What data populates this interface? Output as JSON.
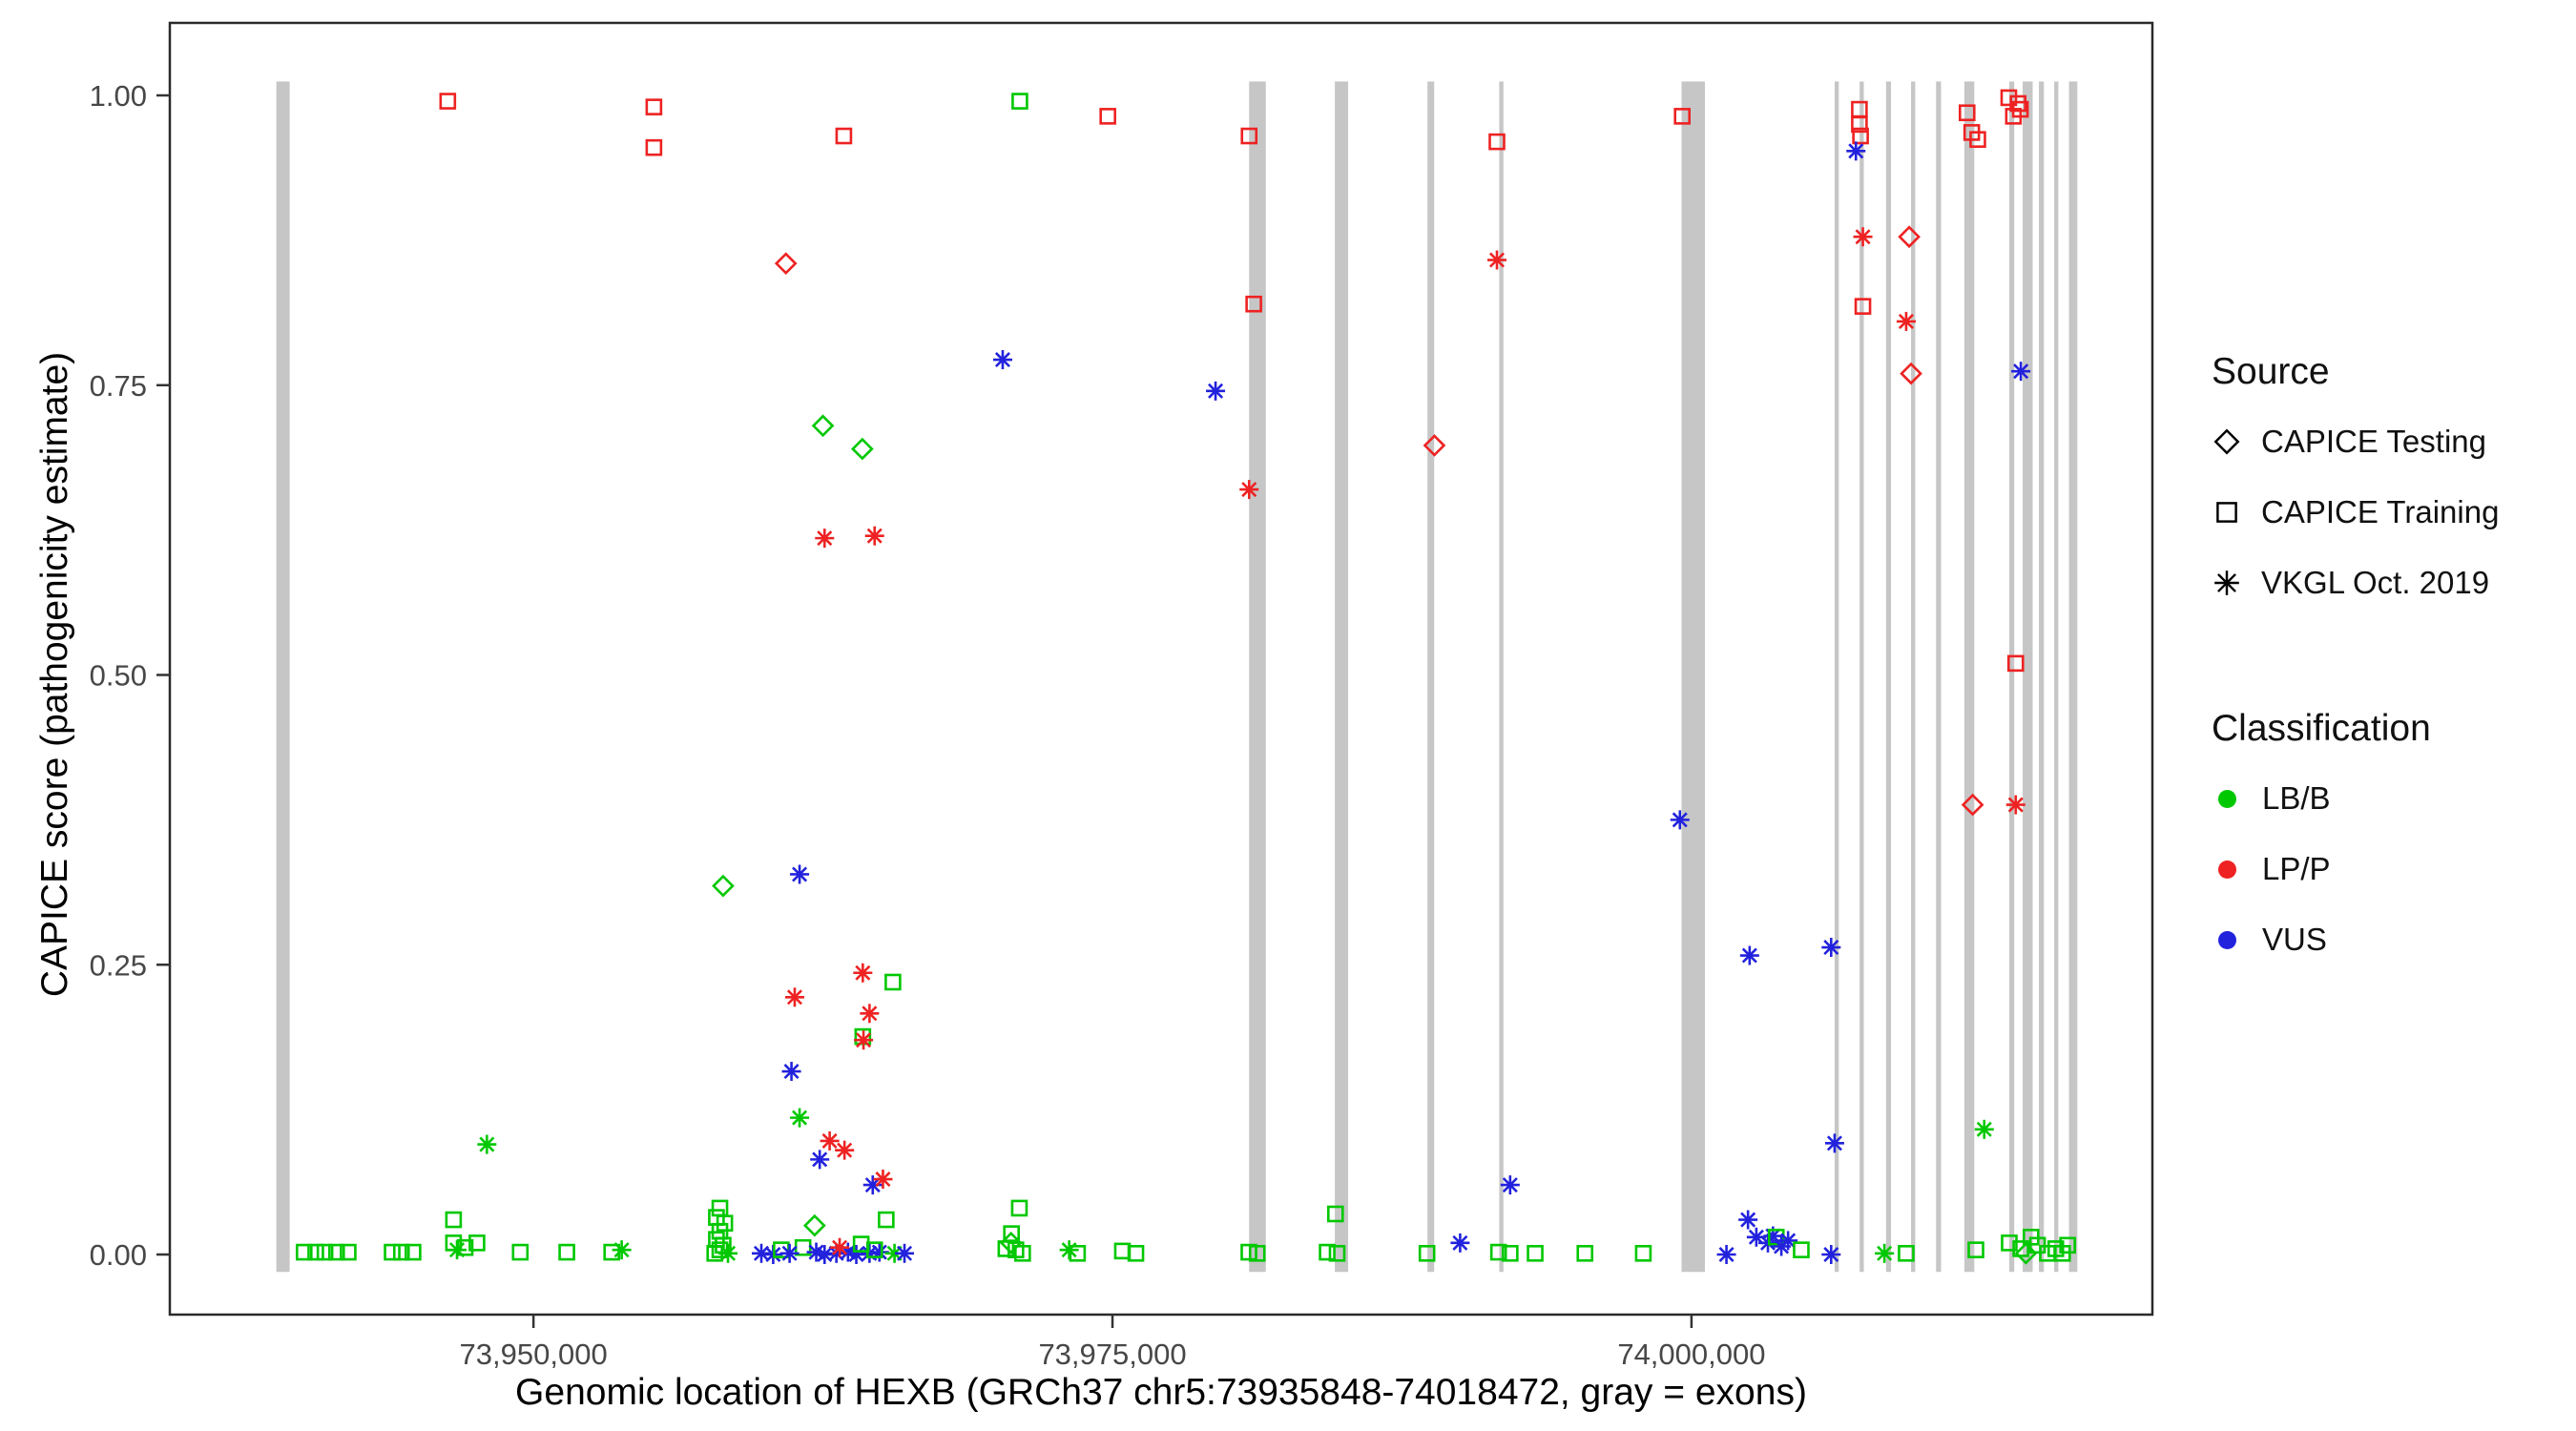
{
  "colors": {
    "LB/B": "#00C800",
    "LP/P": "#EE2222",
    "VUS": "#2222DD",
    "exon": "#C6C6C6",
    "axis_text": "#474747",
    "panel_border": "#2A2A2A"
  },
  "legend": {
    "source": {
      "title": "Source",
      "items": [
        {
          "shape": "diamond",
          "label": "CAPICE Testing"
        },
        {
          "shape": "square",
          "label": "CAPICE Training"
        },
        {
          "shape": "asterisk",
          "label": "VKGL Oct. 2019"
        }
      ]
    },
    "classification": {
      "title": "Classification",
      "items": [
        {
          "label": "LB/B",
          "color": "#00C800"
        },
        {
          "label": "LP/P",
          "color": "#EE2222"
        },
        {
          "label": "VUS",
          "color": "#2222DD"
        }
      ]
    }
  },
  "chart_data": {
    "type": "scatter",
    "title": "",
    "xlabel": "Genomic location of HEXB (GRCh37 chr5:73935848-74018472, gray = exons)",
    "ylabel": "CAPICE score (pathogenicity estimate)",
    "gene_region": "GRCh37 chr5:73935848-74018472",
    "xlim": [
      73934300,
      74019900
    ],
    "ylim": [
      0,
      1
    ],
    "grid": false,
    "legend_position": "right",
    "x_ticks": [
      {
        "value": 73950000,
        "label": "73,950,000"
      },
      {
        "value": 73975000,
        "label": "73,975,000"
      },
      {
        "value": 74000000,
        "label": "74,000,000"
      }
    ],
    "y_ticks": [
      {
        "value": 0.0,
        "label": "0.00"
      },
      {
        "value": 0.25,
        "label": "0.25"
      },
      {
        "value": 0.5,
        "label": "0.50"
      },
      {
        "value": 0.75,
        "label": "0.75"
      },
      {
        "value": 1.0,
        "label": "1.00"
      }
    ],
    "exon_format": [
      "start_position",
      "width_bp"
    ],
    "exons": [
      [
        73938900,
        575
      ],
      [
        73980900,
        720
      ],
      [
        73984600,
        575
      ],
      [
        73988600,
        290
      ],
      [
        73991700,
        180
      ],
      [
        73999570,
        1010
      ],
      [
        74006180,
        180
      ],
      [
        74007260,
        180
      ],
      [
        74008400,
        215
      ],
      [
        74009480,
        180
      ],
      [
        74010560,
        215
      ],
      [
        74011780,
        430
      ],
      [
        74013720,
        215
      ],
      [
        74014300,
        430
      ],
      [
        74015000,
        215
      ],
      [
        74015660,
        180
      ],
      [
        74016300,
        360
      ]
    ],
    "point_format": [
      "genomic_position",
      "capice_score",
      "source: t=CAPICE Testing (diamond), r=CAPICE Training (square), v=VKGL Oct. 2019 (asterisk)",
      "classification: B=LB/B (green), P=LP/P (red), V=VUS (blue)"
    ],
    "points": [
      [
        73946300,
        0.995,
        "r",
        "P"
      ],
      [
        73955200,
        0.99,
        "r",
        "P"
      ],
      [
        73955200,
        0.955,
        "r",
        "P"
      ],
      [
        73963400,
        0.965,
        "r",
        "P"
      ],
      [
        73971000,
        0.995,
        "r",
        "B"
      ],
      [
        73974800,
        0.982,
        "r",
        "P"
      ],
      [
        73980900,
        0.965,
        "r",
        "P"
      ],
      [
        73991600,
        0.96,
        "r",
        "P"
      ],
      [
        73999600,
        0.982,
        "r",
        "P"
      ],
      [
        74007250,
        0.988,
        "r",
        "P"
      ],
      [
        74007250,
        0.975,
        "r",
        "P"
      ],
      [
        74007300,
        0.965,
        "r",
        "P"
      ],
      [
        74007100,
        0.952,
        "v",
        "V"
      ],
      [
        74011900,
        0.985,
        "r",
        "P"
      ],
      [
        74012100,
        0.968,
        "r",
        "P"
      ],
      [
        74012360,
        0.962,
        "r",
        "P"
      ],
      [
        74013700,
        0.998,
        "r",
        "P"
      ],
      [
        74014100,
        0.993,
        "r",
        "P"
      ],
      [
        74014200,
        0.988,
        "r",
        "P"
      ],
      [
        74013900,
        0.982,
        "r",
        "P"
      ],
      [
        73960900,
        0.855,
        "t",
        "P"
      ],
      [
        74007400,
        0.878,
        "v",
        "P"
      ],
      [
        74009400,
        0.878,
        "t",
        "P"
      ],
      [
        73991600,
        0.858,
        "v",
        "P"
      ],
      [
        73981100,
        0.82,
        "r",
        "P"
      ],
      [
        74007400,
        0.818,
        "r",
        "P"
      ],
      [
        74009270,
        0.805,
        "v",
        "P"
      ],
      [
        73970260,
        0.772,
        "v",
        "V"
      ],
      [
        73979450,
        0.745,
        "v",
        "V"
      ],
      [
        74014220,
        0.762,
        "v",
        "V"
      ],
      [
        74009480,
        0.76,
        "t",
        "P"
      ],
      [
        73988900,
        0.698,
        "t",
        "P"
      ],
      [
        73962500,
        0.715,
        "t",
        "B"
      ],
      [
        73964200,
        0.695,
        "t",
        "B"
      ],
      [
        73980900,
        0.66,
        "v",
        "P"
      ],
      [
        73962570,
        0.618,
        "v",
        "P"
      ],
      [
        73964730,
        0.62,
        "v",
        "P"
      ],
      [
        74014000,
        0.51,
        "r",
        "P"
      ],
      [
        74012140,
        0.388,
        "t",
        "P"
      ],
      [
        74014000,
        0.388,
        "v",
        "P"
      ],
      [
        73999500,
        0.375,
        "v",
        "V"
      ],
      [
        73961490,
        0.328,
        "v",
        "V"
      ],
      [
        73958190,
        0.318,
        "t",
        "B"
      ],
      [
        74002510,
        0.258,
        "v",
        "V"
      ],
      [
        74006030,
        0.265,
        "v",
        "V"
      ],
      [
        73964220,
        0.243,
        "v",
        "P"
      ],
      [
        73965520,
        0.235,
        "r",
        "B"
      ],
      [
        73961280,
        0.222,
        "v",
        "P"
      ],
      [
        73964510,
        0.208,
        "v",
        "P"
      ],
      [
        73964220,
        0.188,
        "r",
        "B"
      ],
      [
        73964250,
        0.185,
        "v",
        "P"
      ],
      [
        73961140,
        0.158,
        "v",
        "V"
      ],
      [
        73961490,
        0.118,
        "v",
        "B"
      ],
      [
        73947990,
        0.095,
        "v",
        "B"
      ],
      [
        73962790,
        0.098,
        "v",
        "P"
      ],
      [
        73963430,
        0.09,
        "v",
        "P"
      ],
      [
        73962360,
        0.082,
        "v",
        "V"
      ],
      [
        73964650,
        0.06,
        "v",
        "V"
      ],
      [
        73965090,
        0.065,
        "v",
        "P"
      ],
      [
        73992170,
        0.06,
        "v",
        "V"
      ],
      [
        74006180,
        0.096,
        "v",
        "V"
      ],
      [
        74012640,
        0.108,
        "v",
        "B"
      ],
      [
        73940100,
        0.002,
        "r",
        "B"
      ],
      [
        73940600,
        0.002,
        "r",
        "B"
      ],
      [
        73941000,
        0.002,
        "r",
        "B"
      ],
      [
        73941500,
        0.002,
        "r",
        "B"
      ],
      [
        73942000,
        0.002,
        "r",
        "B"
      ],
      [
        73943900,
        0.002,
        "r",
        "B"
      ],
      [
        73944300,
        0.002,
        "r",
        "B"
      ],
      [
        73944800,
        0.002,
        "r",
        "B"
      ],
      [
        73946550,
        0.01,
        "r",
        "B"
      ],
      [
        73946700,
        0.004,
        "v",
        "B"
      ],
      [
        73947050,
        0.006,
        "r",
        "B"
      ],
      [
        73947560,
        0.01,
        "r",
        "B"
      ],
      [
        73946550,
        0.03,
        "r",
        "B"
      ],
      [
        73949430,
        0.002,
        "r",
        "B"
      ],
      [
        73951440,
        0.002,
        "r",
        "B"
      ],
      [
        73953380,
        0.002,
        "r",
        "B"
      ],
      [
        73953810,
        0.004,
        "v",
        "B"
      ],
      [
        73958050,
        0.04,
        "r",
        "B"
      ],
      [
        73957900,
        0.032,
        "r",
        "B"
      ],
      [
        73958260,
        0.027,
        "r",
        "B"
      ],
      [
        73958050,
        0.02,
        "r",
        "B"
      ],
      [
        73957900,
        0.013,
        "r",
        "B"
      ],
      [
        73958190,
        0.008,
        "r",
        "B"
      ],
      [
        73958050,
        0.004,
        "r",
        "B"
      ],
      [
        73957830,
        0.001,
        "r",
        "B"
      ],
      [
        73958400,
        0.001,
        "v",
        "B"
      ],
      [
        73959840,
        0.001,
        "v",
        "V"
      ],
      [
        73960350,
        0.0,
        "v",
        "V"
      ],
      [
        73960700,
        0.004,
        "r",
        "B"
      ],
      [
        73962140,
        0.025,
        "t",
        "B"
      ],
      [
        73961640,
        0.006,
        "r",
        "B"
      ],
      [
        73961060,
        0.001,
        "v",
        "V"
      ],
      [
        73962210,
        0.002,
        "v",
        "V"
      ],
      [
        73962570,
        0.0,
        "v",
        "V"
      ],
      [
        73963080,
        0.001,
        "v",
        "V"
      ],
      [
        73963580,
        0.002,
        "v",
        "V"
      ],
      [
        73963940,
        0.0,
        "v",
        "V"
      ],
      [
        73964510,
        0.001,
        "v",
        "V"
      ],
      [
        73964940,
        0.002,
        "v",
        "V"
      ],
      [
        73963220,
        0.006,
        "v",
        "P"
      ],
      [
        73964150,
        0.009,
        "r",
        "B"
      ],
      [
        73964730,
        0.004,
        "r",
        "B"
      ],
      [
        73965230,
        0.03,
        "r",
        "B"
      ],
      [
        73965590,
        0.001,
        "v",
        "B"
      ],
      [
        73966020,
        0.001,
        "v",
        "V"
      ],
      [
        73970400,
        0.005,
        "r",
        "B"
      ],
      [
        73970620,
        0.01,
        "t",
        "B"
      ],
      [
        73970640,
        0.018,
        "r",
        "B"
      ],
      [
        73970980,
        0.04,
        "r",
        "B"
      ],
      [
        73970830,
        0.004,
        "r",
        "B"
      ],
      [
        73971120,
        0.001,
        "r",
        "B"
      ],
      [
        73973130,
        0.004,
        "v",
        "B"
      ],
      [
        73973490,
        0.001,
        "r",
        "B"
      ],
      [
        73975430,
        0.003,
        "r",
        "B"
      ],
      [
        73976010,
        0.001,
        "r",
        "B"
      ],
      [
        73980890,
        0.002,
        "r",
        "B"
      ],
      [
        73981250,
        0.001,
        "r",
        "B"
      ],
      [
        73984270,
        0.002,
        "r",
        "B"
      ],
      [
        73984700,
        0.001,
        "r",
        "B"
      ],
      [
        73984630,
        0.035,
        "r",
        "B"
      ],
      [
        73988580,
        0.001,
        "r",
        "B"
      ],
      [
        73990010,
        0.01,
        "v",
        "V"
      ],
      [
        73991670,
        0.002,
        "r",
        "B"
      ],
      [
        73992170,
        0.001,
        "r",
        "B"
      ],
      [
        73993250,
        0.001,
        "r",
        "B"
      ],
      [
        73995400,
        0.001,
        "r",
        "B"
      ],
      [
        73997920,
        0.001,
        "r",
        "B"
      ],
      [
        74001510,
        0.0,
        "v",
        "V"
      ],
      [
        74002440,
        0.03,
        "v",
        "V"
      ],
      [
        74002800,
        0.015,
        "v",
        "V"
      ],
      [
        74003300,
        0.01,
        "v",
        "V"
      ],
      [
        74003520,
        0.016,
        "v",
        "V"
      ],
      [
        74003660,
        0.015,
        "r",
        "B"
      ],
      [
        74003880,
        0.007,
        "v",
        "V"
      ],
      [
        74004170,
        0.012,
        "v",
        "V"
      ],
      [
        74004740,
        0.004,
        "r",
        "B"
      ],
      [
        74006030,
        0.0,
        "v",
        "V"
      ],
      [
        74008330,
        0.001,
        "v",
        "B"
      ],
      [
        74009270,
        0.001,
        "r",
        "B"
      ],
      [
        74012280,
        0.004,
        "r",
        "B"
      ],
      [
        74013720,
        0.01,
        "r",
        "B"
      ],
      [
        74014220,
        0.005,
        "r",
        "B"
      ],
      [
        74014660,
        0.015,
        "r",
        "B"
      ],
      [
        74014940,
        0.008,
        "r",
        "B"
      ],
      [
        74015370,
        0.001,
        "r",
        "B"
      ],
      [
        74015730,
        0.005,
        "r",
        "B"
      ],
      [
        74016240,
        0.008,
        "r",
        "B"
      ],
      [
        74016020,
        0.001,
        "r",
        "B"
      ],
      [
        74014440,
        0.001,
        "t",
        "B"
      ]
    ]
  }
}
